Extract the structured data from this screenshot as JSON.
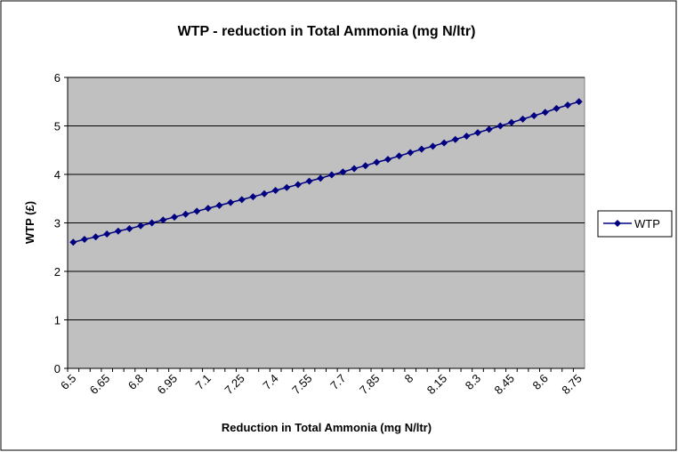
{
  "chart_data": {
    "type": "line",
    "title": "WTP - reduction in Total Ammonia (mg N/ltr)",
    "xlabel": "Reduction in Total Ammonia (mg N/ltr)",
    "ylabel": "WTP (£)",
    "categories": [
      "6.5",
      null,
      null,
      "6.65",
      null,
      null,
      "6.8",
      null,
      null,
      "6.95",
      null,
      null,
      "7.1",
      null,
      null,
      "7.25",
      null,
      null,
      "7.4",
      null,
      null,
      "7.55",
      null,
      null,
      "7.7",
      null,
      null,
      "7.85",
      null,
      null,
      "8",
      null,
      null,
      "8.15",
      null,
      null,
      "8.3",
      null,
      null,
      "8.45",
      null,
      null,
      "8.6",
      null,
      null,
      "8.75"
    ],
    "series": [
      {
        "name": "WTP",
        "color": "#000080",
        "values": [
          2.6,
          2.66,
          2.71,
          2.77,
          2.83,
          2.88,
          2.94,
          3.0,
          3.06,
          3.12,
          3.18,
          3.24,
          3.3,
          3.36,
          3.42,
          3.48,
          3.54,
          3.6,
          3.67,
          3.73,
          3.79,
          3.86,
          3.92,
          3.99,
          4.05,
          4.12,
          4.18,
          4.25,
          4.31,
          4.38,
          4.45,
          4.52,
          4.58,
          4.65,
          4.72,
          4.79,
          4.86,
          4.93,
          5.0,
          5.07,
          5.14,
          5.21,
          5.28,
          5.36,
          5.43,
          5.5
        ]
      }
    ],
    "ylim": [
      0,
      6
    ],
    "yticks": [
      0,
      1,
      2,
      3,
      4,
      5,
      6
    ],
    "grid": true,
    "legend": "right",
    "plot_background": "#c0c0c0"
  }
}
